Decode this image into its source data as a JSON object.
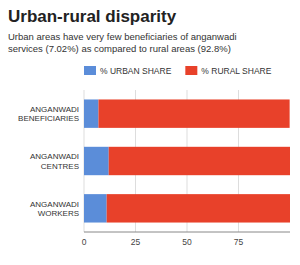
{
  "chart_data": {
    "type": "bar",
    "orientation": "horizontal",
    "stacked": true,
    "title": "Urban-rural disparity",
    "subtitle": "Urban areas have very few beneficiaries of anganwadi\nservices (7.02%) as compared to rural areas (92.8%)",
    "categories": [
      "ANGANWADI\nBENEFICIARIES",
      "ANGANWADI\nCENTRES",
      "ANGANWADI\nWORKERS"
    ],
    "series": [
      {
        "name": "% URBAN SHARE",
        "color": "#5B8DD9",
        "values": [
          7.02,
          12.0,
          11.0
        ]
      },
      {
        "name": "% RURAL SHARE",
        "color": "#E8412A",
        "values": [
          92.8,
          88.0,
          89.0
        ]
      }
    ],
    "xlim": [
      0,
      100
    ],
    "xticks": [
      0,
      25,
      50,
      75
    ],
    "grid": true,
    "legend": "top"
  }
}
